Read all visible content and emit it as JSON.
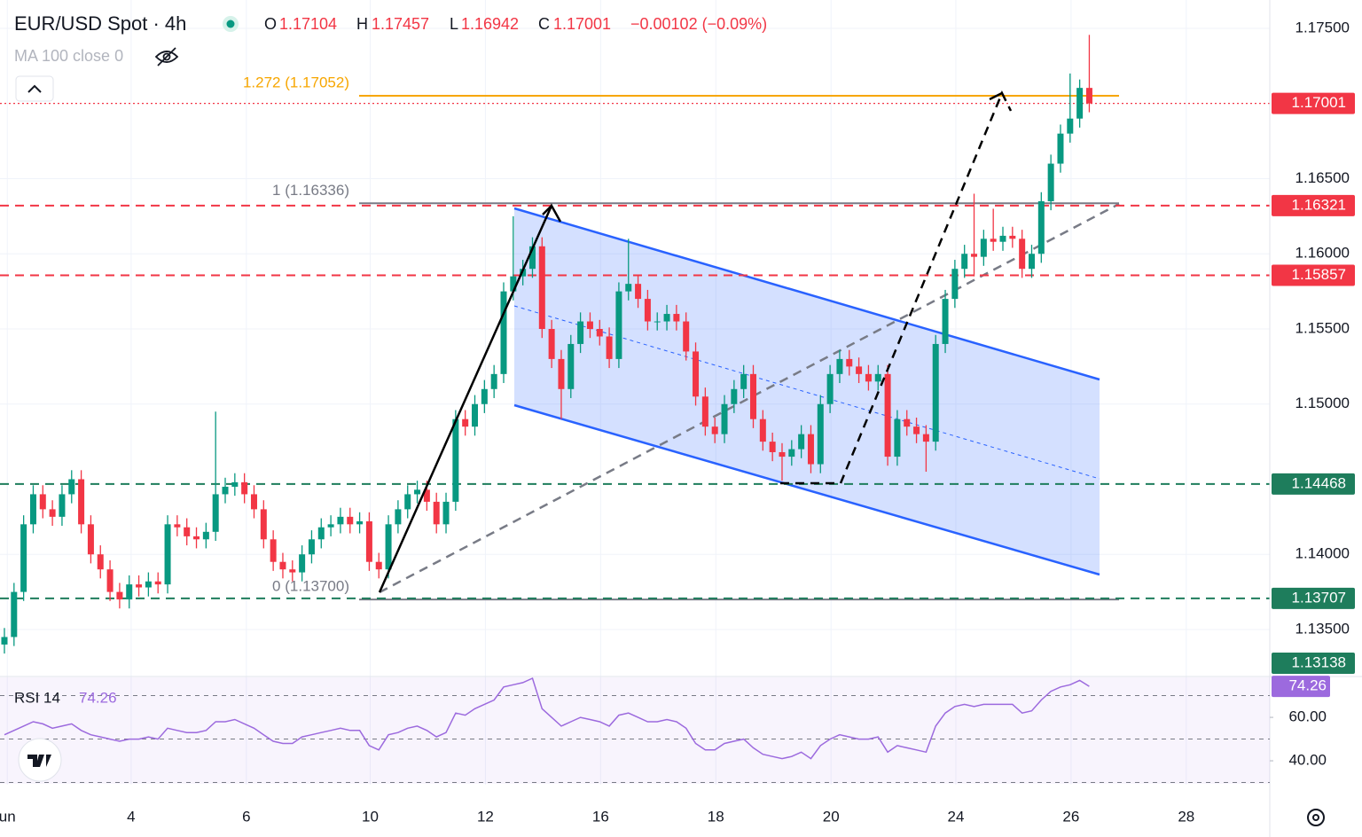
{
  "chart_data": {
    "type": "candlestick",
    "title": "EUR/USD Spot · 4h",
    "ohlc_letters": [
      "O",
      "H",
      "L",
      "C"
    ],
    "change": "−0.00102 (−0.09%)",
    "indicator": "MA 100 close 0",
    "up_color": "#089981",
    "down_color": "#f23645",
    "ylim": [
      1.13193,
      1.17689
    ],
    "yticks": [
      {
        "value": 1.175,
        "label": "1.17500"
      },
      {
        "value": 1.165,
        "label": "1.16500"
      },
      {
        "value": 1.16,
        "label": "1.16000"
      },
      {
        "value": 1.155,
        "label": "1.15500"
      },
      {
        "value": 1.15,
        "label": "1.15000"
      },
      {
        "value": 1.14,
        "label": "1.14000"
      },
      {
        "value": 1.135,
        "label": "1.13500"
      }
    ],
    "xlim": [
      -0.46,
      131.8
    ],
    "xticks": [
      {
        "value": 0.3,
        "label": "un"
      },
      {
        "value": 13.2,
        "label": "4"
      },
      {
        "value": 25.2,
        "label": "6"
      },
      {
        "value": 38.1,
        "label": "10"
      },
      {
        "value": 50.1,
        "label": "12"
      },
      {
        "value": 62.1,
        "label": "16"
      },
      {
        "value": 74.1,
        "label": "18"
      },
      {
        "value": 86.1,
        "label": "20"
      },
      {
        "value": 99.1,
        "label": "24"
      },
      {
        "value": 111.1,
        "label": "26"
      },
      {
        "value": 123.1,
        "label": "28"
      }
    ],
    "candles": [
      [
        1.134,
        1.1351,
        1.1334,
        1.1345
      ],
      [
        1.1345,
        1.1381,
        1.1339,
        1.1375
      ],
      [
        1.1375,
        1.1426,
        1.1369,
        1.142
      ],
      [
        1.142,
        1.1446,
        1.1414,
        1.144
      ],
      [
        1.144,
        1.1446,
        1.1424,
        1.143
      ],
      [
        1.143,
        1.1436,
        1.1419,
        1.1425
      ],
      [
        1.1425,
        1.1446,
        1.1419,
        1.144
      ],
      [
        1.144,
        1.1456,
        1.1434,
        1.145
      ],
      [
        1.145,
        1.1456,
        1.1414,
        1.142
      ],
      [
        1.142,
        1.1426,
        1.1394,
        1.14
      ],
      [
        1.14,
        1.1406,
        1.1384,
        1.139
      ],
      [
        1.139,
        1.1396,
        1.1369,
        1.1375
      ],
      [
        1.1375,
        1.1381,
        1.1364,
        1.137
      ],
      [
        1.137,
        1.1386,
        1.1364,
        1.138
      ],
      [
        1.138,
        1.1386,
        1.1372,
        1.1378
      ],
      [
        1.1378,
        1.1388,
        1.1372,
        1.1382
      ],
      [
        1.1382,
        1.1388,
        1.1374,
        1.138
      ],
      [
        1.138,
        1.1426,
        1.1374,
        1.142
      ],
      [
        1.142,
        1.1426,
        1.1412,
        1.1418
      ],
      [
        1.1418,
        1.1424,
        1.1406,
        1.1412
      ],
      [
        1.1412,
        1.1418,
        1.1404,
        1.141
      ],
      [
        1.141,
        1.1421,
        1.1404,
        1.1415
      ],
      [
        1.1415,
        1.1495,
        1.1409,
        1.144
      ],
      [
        1.144,
        1.1451,
        1.1434,
        1.1445
      ],
      [
        1.1445,
        1.1454,
        1.1439,
        1.1448
      ],
      [
        1.1448,
        1.1454,
        1.1434,
        1.144
      ],
      [
        1.144,
        1.1446,
        1.1424,
        1.143
      ],
      [
        1.143,
        1.1436,
        1.1404,
        1.141
      ],
      [
        1.141,
        1.1416,
        1.1389,
        1.1395
      ],
      [
        1.1395,
        1.1401,
        1.1384,
        1.139
      ],
      [
        1.139,
        1.1396,
        1.1382,
        1.1388
      ],
      [
        1.1388,
        1.1406,
        1.1382,
        1.14
      ],
      [
        1.14,
        1.1416,
        1.1394,
        1.141
      ],
      [
        1.141,
        1.1424,
        1.1404,
        1.1418
      ],
      [
        1.1418,
        1.1426,
        1.1412,
        1.142
      ],
      [
        1.142,
        1.1431,
        1.1414,
        1.1425
      ],
      [
        1.1425,
        1.1431,
        1.1414,
        1.142
      ],
      [
        1.142,
        1.1428,
        1.1414,
        1.1422
      ],
      [
        1.1422,
        1.1428,
        1.1389,
        1.1395
      ],
      [
        1.1395,
        1.1401,
        1.1384,
        1.139
      ],
      [
        1.139,
        1.1426,
        1.1384,
        1.142
      ],
      [
        1.142,
        1.1436,
        1.1414,
        1.143
      ],
      [
        1.143,
        1.1446,
        1.1424,
        1.144
      ],
      [
        1.144,
        1.1449,
        1.1434,
        1.1443
      ],
      [
        1.1443,
        1.1449,
        1.1429,
        1.1435
      ],
      [
        1.1435,
        1.1441,
        1.1414,
        1.142
      ],
      [
        1.142,
        1.1441,
        1.1414,
        1.1435
      ],
      [
        1.1435,
        1.1496,
        1.1429,
        1.149
      ],
      [
        1.149,
        1.1496,
        1.1479,
        1.1485
      ],
      [
        1.1485,
        1.1506,
        1.1479,
        1.15
      ],
      [
        1.15,
        1.1516,
        1.1494,
        1.151
      ],
      [
        1.151,
        1.1526,
        1.1504,
        1.152
      ],
      [
        1.152,
        1.1581,
        1.1514,
        1.1575
      ],
      [
        1.1575,
        1.1625,
        1.1569,
        1.1585
      ],
      [
        1.1585,
        1.1596,
        1.1579,
        1.159
      ],
      [
        1.159,
        1.1611,
        1.1584,
        1.1605
      ],
      [
        1.1605,
        1.1611,
        1.1544,
        1.155
      ],
      [
        1.155,
        1.1556,
        1.1524,
        1.153
      ],
      [
        1.153,
        1.1536,
        1.149,
        1.151
      ],
      [
        1.151,
        1.1546,
        1.1504,
        1.154
      ],
      [
        1.154,
        1.1561,
        1.1534,
        1.1555
      ],
      [
        1.1555,
        1.1561,
        1.1544,
        1.155
      ],
      [
        1.155,
        1.1556,
        1.1539,
        1.1545
      ],
      [
        1.1545,
        1.1551,
        1.1524,
        1.153
      ],
      [
        1.153,
        1.1581,
        1.1524,
        1.1575
      ],
      [
        1.1575,
        1.161,
        1.1569,
        1.158
      ],
      [
        1.158,
        1.1586,
        1.1564,
        1.157
      ],
      [
        1.157,
        1.1576,
        1.1549,
        1.1555
      ],
      [
        1.1555,
        1.1561,
        1.1549,
        1.1555
      ],
      [
        1.1555,
        1.1566,
        1.1549,
        1.156
      ],
      [
        1.156,
        1.1566,
        1.1549,
        1.1555
      ],
      [
        1.1555,
        1.1561,
        1.1529,
        1.1535
      ],
      [
        1.1535,
        1.1541,
        1.1499,
        1.1505
      ],
      [
        1.1505,
        1.1511,
        1.1479,
        1.1485
      ],
      [
        1.1485,
        1.1491,
        1.1474,
        1.148
      ],
      [
        1.148,
        1.1506,
        1.1474,
        1.15
      ],
      [
        1.15,
        1.1516,
        1.1494,
        1.151
      ],
      [
        1.151,
        1.1526,
        1.1504,
        1.152
      ],
      [
        1.152,
        1.1526,
        1.1484,
        1.149
      ],
      [
        1.149,
        1.1496,
        1.1469,
        1.1475
      ],
      [
        1.1475,
        1.1481,
        1.1462,
        1.1468
      ],
      [
        1.1468,
        1.1474,
        1.1449,
        1.1465
      ],
      [
        1.1465,
        1.1476,
        1.1459,
        1.147
      ],
      [
        1.147,
        1.1486,
        1.1464,
        1.148
      ],
      [
        1.148,
        1.1486,
        1.1454,
        1.146
      ],
      [
        1.146,
        1.1506,
        1.1454,
        1.15
      ],
      [
        1.15,
        1.1526,
        1.1494,
        1.152
      ],
      [
        1.152,
        1.1536,
        1.1514,
        1.153
      ],
      [
        1.153,
        1.1536,
        1.1519,
        1.1525
      ],
      [
        1.1525,
        1.1531,
        1.1514,
        1.152
      ],
      [
        1.152,
        1.1526,
        1.1509,
        1.1515
      ],
      [
        1.1515,
        1.1526,
        1.1509,
        1.152
      ],
      [
        1.152,
        1.1526,
        1.1459,
        1.1465
      ],
      [
        1.1465,
        1.1496,
        1.1459,
        1.149
      ],
      [
        1.149,
        1.1496,
        1.1479,
        1.1485
      ],
      [
        1.1485,
        1.1491,
        1.1474,
        1.148
      ],
      [
        1.148,
        1.1486,
        1.1455,
        1.1475
      ],
      [
        1.1475,
        1.1546,
        1.1469,
        1.154
      ],
      [
        1.154,
        1.1576,
        1.1534,
        1.157
      ],
      [
        1.157,
        1.1596,
        1.1564,
        1.159
      ],
      [
        1.159,
        1.1606,
        1.1584,
        1.16
      ],
      [
        1.16,
        1.164,
        1.1585,
        1.1598
      ],
      [
        1.1598,
        1.1616,
        1.1592,
        1.161
      ],
      [
        1.161,
        1.163,
        1.1602,
        1.1608
      ],
      [
        1.1608,
        1.1618,
        1.1602,
        1.1612
      ],
      [
        1.1612,
        1.1618,
        1.1604,
        1.161
      ],
      [
        1.161,
        1.1616,
        1.1584,
        1.159
      ],
      [
        1.159,
        1.1606,
        1.1584,
        1.16
      ],
      [
        1.16,
        1.1641,
        1.1594,
        1.1635
      ],
      [
        1.1635,
        1.1666,
        1.1629,
        1.166
      ],
      [
        1.166,
        1.1686,
        1.1654,
        1.168
      ],
      [
        1.168,
        1.172,
        1.1674,
        1.169
      ],
      [
        1.169,
        1.1716,
        1.1684,
        1.17104
      ],
      [
        1.17104,
        1.17457,
        1.16942,
        1.17001
      ]
    ],
    "fib_levels": [
      {
        "value": 1.17052,
        "label": "1.272 (1.17052)",
        "color": "#f7a600"
      },
      {
        "value": 1.16336,
        "label": "1 (1.16336)",
        "color": "#787b86"
      },
      {
        "value": 1.137,
        "label": "0 (1.13700)",
        "color": "#787b86"
      }
    ],
    "levels": [
      {
        "value": 1.17001,
        "color": "#f23645",
        "style": "dotted"
      },
      {
        "value": 1.16321,
        "color": "#f23645",
        "style": "dashed"
      },
      {
        "value": 1.15857,
        "color": "#f23645",
        "style": "dashed"
      },
      {
        "value": 1.14468,
        "color": "#1e7d5c",
        "style": "dashed"
      },
      {
        "value": 1.13707,
        "color": "#1e7d5c",
        "style": "dashed"
      },
      {
        "value": 1.13138,
        "color": "#1e7d5c",
        "style": "none"
      }
    ],
    "rsi": {
      "label": "RSI 14",
      "color": "#9c6ade",
      "ylim": [
        29,
        78.8
      ],
      "yticks": [
        {
          "value": 60,
          "label": "60.00"
        },
        {
          "value": 40,
          "label": "40.00"
        }
      ],
      "bands": [
        70,
        50,
        30
      ],
      "values": [
        52,
        54,
        56,
        58,
        57,
        55,
        56,
        57,
        54,
        52,
        51,
        50,
        49,
        50,
        50,
        51,
        50,
        55,
        54,
        53,
        53,
        54,
        58,
        58,
        59,
        57,
        55,
        52,
        49,
        48,
        48,
        51,
        52,
        53,
        54,
        55,
        54,
        54,
        47,
        45,
        52,
        53,
        55,
        56,
        54,
        51,
        53,
        62,
        61,
        64,
        66,
        68,
        74,
        75,
        76,
        78,
        64,
        60,
        56,
        58,
        60,
        59,
        58,
        56,
        61,
        62,
        60,
        58,
        58,
        59,
        58,
        55,
        48,
        45,
        45,
        48,
        49,
        50,
        46,
        43,
        42,
        41,
        42,
        44,
        41,
        47,
        50,
        52,
        51,
        50,
        50,
        51,
        44,
        47,
        46,
        45,
        44,
        56,
        62,
        65,
        66,
        65,
        66,
        66,
        66,
        66,
        62,
        63,
        68,
        72,
        74,
        75,
        77,
        74.26
      ]
    }
  }
}
